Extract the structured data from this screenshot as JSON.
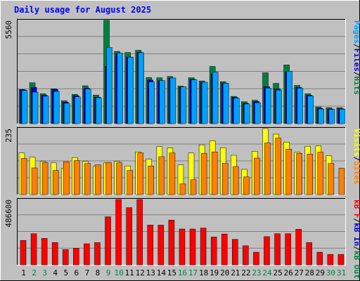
{
  "chart_data": {
    "type": "bar",
    "title": "Daily usage for August 2025",
    "x": [
      "1",
      "2",
      "3",
      "4",
      "5",
      "6",
      "7",
      "8",
      "9",
      "10",
      "11",
      "12",
      "13",
      "14",
      "15",
      "16",
      "17",
      "18",
      "19",
      "20",
      "21",
      "22",
      "23",
      "24",
      "25",
      "26",
      "27",
      "28",
      "29",
      "30",
      "31"
    ],
    "weekend_days": [
      2,
      3,
      9,
      10,
      16,
      17,
      23,
      24,
      30,
      31
    ],
    "panels": [
      {
        "id": "hits",
        "max_label": "5560",
        "ylim": [
          0,
          5560
        ],
        "label_parts": [
          "Pages",
          "/",
          "Files",
          "/",
          "Hits"
        ],
        "label_colors": [
          "#00A0FF",
          "#000000",
          "#0000C0",
          "#000000",
          "#008040"
        ],
        "series": [
          {
            "name": "Hits",
            "color": "#008040",
            "values": [
              1840,
              2200,
              1610,
              1880,
              1230,
              1580,
              2040,
              1540,
              5560,
              3890,
              3830,
              3950,
              2480,
              2470,
              2540,
              2020,
              2470,
              2300,
              3080,
              2260,
              1470,
              1180,
              1260,
              2740,
              2170,
              3160,
              2060,
              1610,
              900,
              860,
              860
            ]
          },
          {
            "name": "Files",
            "color": "#0000C0",
            "values": [
              1820,
              1960,
              1530,
              1840,
              1160,
              1500,
              1910,
              1430,
              3090,
              3780,
              3590,
              3840,
              2350,
              2310,
              2450,
              1980,
              2390,
              2220,
              2670,
              2180,
              1410,
              1100,
              1200,
              1990,
              1870,
              2800,
              1950,
              1530,
              830,
              790,
              800
            ]
          },
          {
            "name": "Pages",
            "color": "#00A0FF",
            "values": [
              1790,
              1700,
              1480,
              1740,
              1100,
              1450,
              1870,
              1400,
              4100,
              3800,
              3580,
              3820,
              2250,
              2320,
              2460,
              1980,
              2360,
              2230,
              2770,
              2180,
              1370,
              1060,
              1130,
              1920,
              1810,
              2820,
              1910,
              1490,
              790,
              770,
              780
            ]
          }
        ]
      },
      {
        "id": "visits",
        "max_label": "235",
        "ylim": [
          0,
          235
        ],
        "label_parts": [
          "Visits",
          "/",
          "Sites"
        ],
        "label_colors": [
          "#FFFF00",
          "#000000",
          "#FF8000"
        ],
        "series": [
          {
            "name": "Visits",
            "color": "#FFFF00",
            "values": [
              148,
              133,
              118,
              113,
              94,
              132,
              118,
              102,
              113,
              118,
              102,
              152,
              126,
              171,
              166,
              106,
              148,
              177,
              192,
              167,
              140,
              90,
              154,
              235,
              215,
              187,
              151,
              172,
              173,
              138,
              0
            ]
          },
          {
            "name": "Sites",
            "color": "#FF8000",
            "values": [
              129,
              95,
              114,
              86,
              117,
              121,
              111,
              106,
              114,
              113,
              86,
              148,
              102,
              135,
              148,
              38,
              53,
              147,
              152,
              112,
              100,
              63,
              130,
              184,
              201,
              162,
              147,
              144,
              151,
              111,
              94
            ]
          }
        ]
      },
      {
        "id": "kbytes",
        "max_label": "486600",
        "ylim": [
          0,
          486600
        ],
        "label_parts": [
          "kB F",
          "/",
          "kB In",
          "/",
          "kB Out"
        ],
        "label_colors": [
          "#FF0000",
          "#000000",
          "#0000C0",
          "#000000",
          "#008040"
        ],
        "series": [
          {
            "name": "kB F",
            "color": "#FF0000",
            "values": [
              182000,
              232000,
              197000,
              166000,
              114000,
              124000,
              157000,
              166000,
              358000,
              486600,
              426000,
              486600,
              296000,
              296000,
              333000,
              267000,
              267000,
              274000,
              207000,
              230000,
              190000,
              142000,
              94000,
              210000,
              232000,
              232000,
              265000,
              166000,
              94000,
              78000,
              78000
            ]
          }
        ]
      }
    ]
  }
}
